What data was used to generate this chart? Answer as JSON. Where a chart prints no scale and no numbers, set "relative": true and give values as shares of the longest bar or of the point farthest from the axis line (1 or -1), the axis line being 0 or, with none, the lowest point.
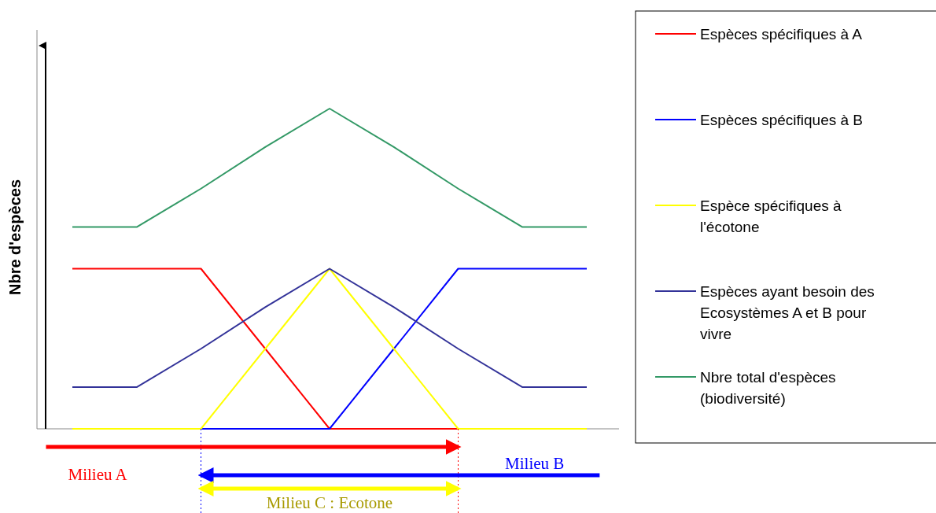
{
  "chart_data": {
    "type": "line",
    "relative": true,
    "ylabel": "Nbre d'espèces",
    "legend": "right",
    "grid": false,
    "marker": "none",
    "line_style": "solid",
    "categories": [
      null,
      null,
      null,
      null,
      null,
      null,
      null,
      null,
      null
    ],
    "series": [
      {
        "name": "Espèces spécifiques à A",
        "color": "#ff0000",
        "values": [
          0.5,
          0.5,
          0.5,
          0.25,
          0,
          0,
          0,
          0,
          0
        ]
      },
      {
        "name": "Espèces spécifiques à B",
        "color": "#0000ff",
        "values": [
          0,
          0,
          0,
          0,
          0,
          0.25,
          0.5,
          0.5,
          0.5
        ]
      },
      {
        "name": "Espèce spécifiques à l'écotone",
        "color": "#ffff00",
        "values": [
          0,
          0,
          0,
          0.25,
          0.5,
          0.25,
          0,
          0,
          0
        ]
      },
      {
        "name": "Espèces ayant besoin des Ecosystèmes A et B pour vivre",
        "color": "#333399",
        "values": [
          0.13,
          0.13,
          0.25,
          0.38,
          0.5,
          0.38,
          0.25,
          0.13,
          0.13
        ]
      },
      {
        "name": "Nbre total d'espèces (biodiversité)",
        "color": "#339966",
        "values": [
          0.63,
          0.63,
          0.75,
          0.88,
          1,
          0.88,
          0.75,
          0.63,
          0.63
        ]
      }
    ],
    "annotations": [
      "Milieu A",
      "Milieu B",
      "Milieu C : Ecotone"
    ]
  }
}
